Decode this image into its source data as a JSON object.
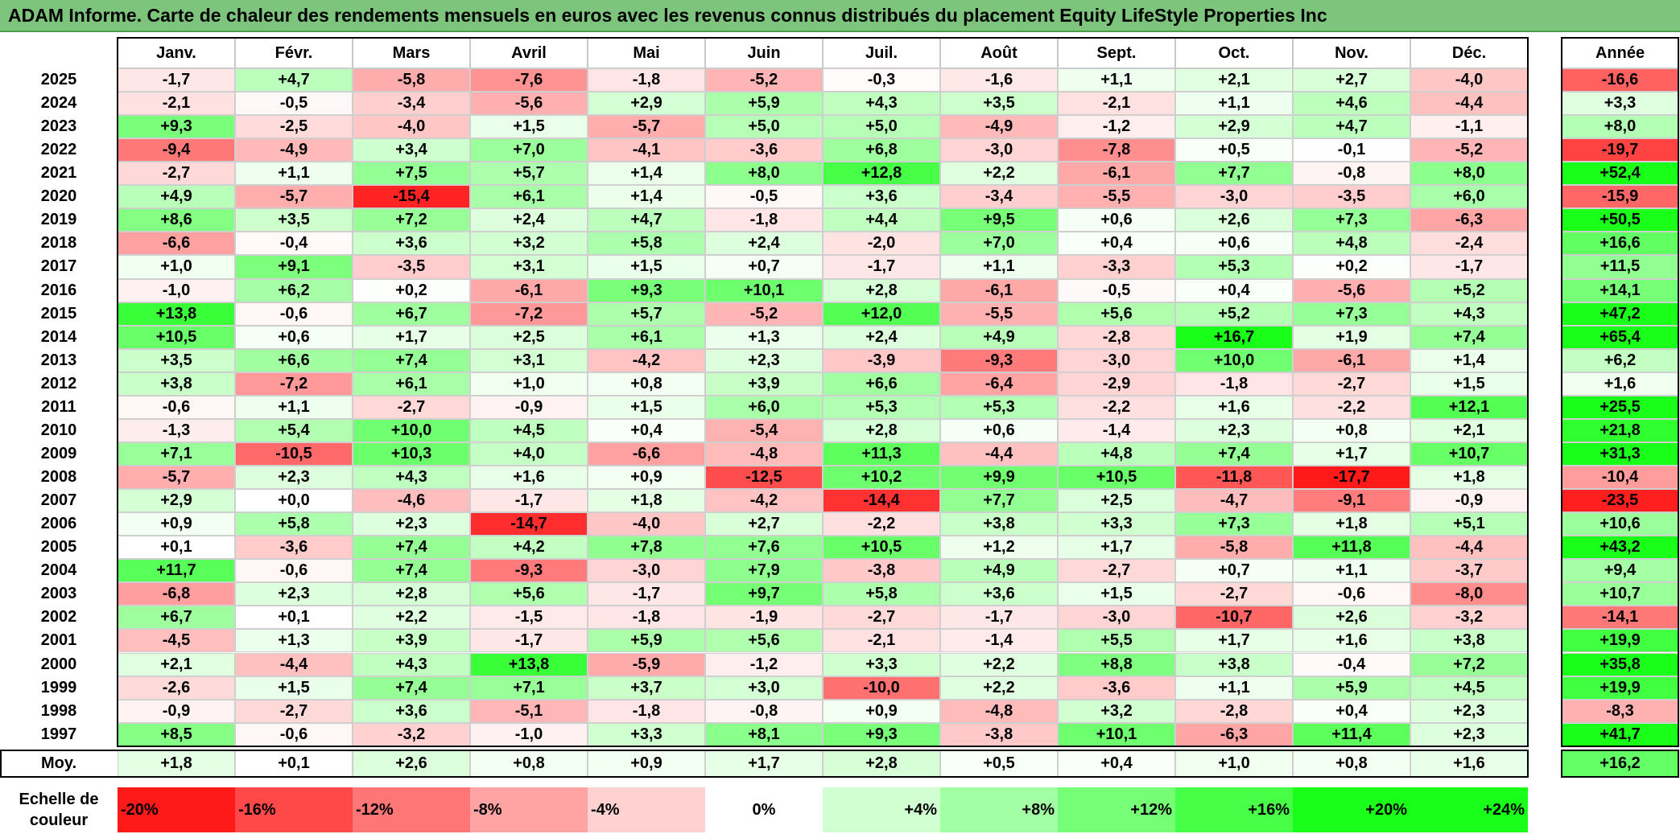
{
  "title": "ADAM Informe. Carte de chaleur des rendements mensuels en euros avec les revenus connus distribués du placement Equity LifeStyle Properties Inc",
  "colors": {
    "title_bg": "#7dc57d",
    "negative_max": "#ff1a1a",
    "neutral": "#ffffff",
    "positive_max": "#1aff1a"
  },
  "chart_data": {
    "type": "heatmap",
    "title": "ADAM Informe. Carte de chaleur des rendements mensuels en euros avec les revenus connus distribués du placement Equity LifeStyle Properties Inc",
    "columns": [
      "Janv.",
      "Févr.",
      "Mars",
      "Avril",
      "Mai",
      "Juin",
      "Juil.",
      "Août",
      "Sept.",
      "Oct.",
      "Nov.",
      "Déc."
    ],
    "year_column_label": "Année",
    "rows": [
      {
        "year": "2025",
        "months": [
          "-1,7",
          "+4,7",
          "-5,8",
          "-7,6",
          "-1,8",
          "-5,2",
          "-0,3",
          "-1,6",
          "+1,1",
          "+2,1",
          "+2,7",
          "-4,0"
        ],
        "annual": "-16,6"
      },
      {
        "year": "2024",
        "months": [
          "-2,1",
          "-0,5",
          "-3,4",
          "-5,6",
          "+2,9",
          "+5,9",
          "+4,3",
          "+3,5",
          "-2,1",
          "+1,1",
          "+4,6",
          "-4,4"
        ],
        "annual": "+3,3"
      },
      {
        "year": "2023",
        "months": [
          "+9,3",
          "-2,5",
          "-4,0",
          "+1,5",
          "-5,7",
          "+5,0",
          "+5,0",
          "-4,9",
          "-1,2",
          "+2,9",
          "+4,7",
          "-1,1"
        ],
        "annual": "+8,0"
      },
      {
        "year": "2022",
        "months": [
          "-9,4",
          "-4,9",
          "+3,4",
          "+7,0",
          "-4,1",
          "-3,6",
          "+6,8",
          "-3,0",
          "-7,8",
          "+0,5",
          "-0,1",
          "-5,2"
        ],
        "annual": "-19,7"
      },
      {
        "year": "2021",
        "months": [
          "-2,7",
          "+1,1",
          "+7,5",
          "+5,7",
          "+1,4",
          "+8,0",
          "+12,8",
          "+2,2",
          "-6,1",
          "+7,7",
          "-0,8",
          "+8,0"
        ],
        "annual": "+52,4"
      },
      {
        "year": "2020",
        "months": [
          "+4,9",
          "-5,7",
          "-15,4",
          "+6,1",
          "+1,4",
          "-0,5",
          "+3,6",
          "-3,4",
          "-5,5",
          "-3,0",
          "-3,5",
          "+6,0"
        ],
        "annual": "-15,9"
      },
      {
        "year": "2019",
        "months": [
          "+8,6",
          "+3,5",
          "+7,2",
          "+2,4",
          "+4,7",
          "-1,8",
          "+4,4",
          "+9,5",
          "+0,6",
          "+2,6",
          "+7,3",
          "-6,3"
        ],
        "annual": "+50,5"
      },
      {
        "year": "2018",
        "months": [
          "-6,6",
          "-0,4",
          "+3,6",
          "+3,2",
          "+5,8",
          "+2,4",
          "-2,0",
          "+7,0",
          "+0,4",
          "+0,6",
          "+4,8",
          "-2,4"
        ],
        "annual": "+16,6"
      },
      {
        "year": "2017",
        "months": [
          "+1,0",
          "+9,1",
          "-3,5",
          "+3,1",
          "+1,5",
          "+0,7",
          "-1,7",
          "+1,1",
          "-3,3",
          "+5,3",
          "+0,2",
          "-1,7"
        ],
        "annual": "+11,5"
      },
      {
        "year": "2016",
        "months": [
          "-1,0",
          "+6,2",
          "+0,2",
          "-6,1",
          "+9,3",
          "+10,1",
          "+2,8",
          "-6,1",
          "-0,5",
          "+0,4",
          "-5,6",
          "+5,2"
        ],
        "annual": "+14,1"
      },
      {
        "year": "2015",
        "months": [
          "+13,8",
          "-0,6",
          "+6,7",
          "-7,2",
          "+5,7",
          "-5,2",
          "+12,0",
          "-5,5",
          "+5,6",
          "+5,2",
          "+7,3",
          "+4,3"
        ],
        "annual": "+47,2"
      },
      {
        "year": "2014",
        "months": [
          "+10,5",
          "+0,6",
          "+1,7",
          "+2,5",
          "+6,1",
          "+1,3",
          "+2,4",
          "+4,9",
          "-2,8",
          "+16,7",
          "+1,9",
          "+7,4"
        ],
        "annual": "+65,4"
      },
      {
        "year": "2013",
        "months": [
          "+3,5",
          "+6,6",
          "+7,4",
          "+3,1",
          "-4,2",
          "+2,3",
          "-3,9",
          "-9,3",
          "-3,0",
          "+10,0",
          "-6,1",
          "+1,4"
        ],
        "annual": "+6,2"
      },
      {
        "year": "2012",
        "months": [
          "+3,8",
          "-7,2",
          "+6,1",
          "+1,0",
          "+0,8",
          "+3,9",
          "+6,6",
          "-6,4",
          "-2,9",
          "-1,8",
          "-2,7",
          "+1,5"
        ],
        "annual": "+1,6"
      },
      {
        "year": "2011",
        "months": [
          "-0,6",
          "+1,1",
          "-2,7",
          "-0,9",
          "+1,5",
          "+6,0",
          "+5,3",
          "+5,3",
          "-2,2",
          "+1,6",
          "-2,2",
          "+12,1"
        ],
        "annual": "+25,5"
      },
      {
        "year": "2010",
        "months": [
          "-1,3",
          "+5,4",
          "+10,0",
          "+4,5",
          "+0,4",
          "-5,4",
          "+2,8",
          "+0,6",
          "-1,4",
          "+2,3",
          "+0,8",
          "+2,1"
        ],
        "annual": "+21,8"
      },
      {
        "year": "2009",
        "months": [
          "+7,1",
          "-10,5",
          "+10,3",
          "+4,0",
          "-6,6",
          "-4,8",
          "+11,3",
          "-4,4",
          "+4,8",
          "+7,4",
          "+1,7",
          "+10,7"
        ],
        "annual": "+31,3"
      },
      {
        "year": "2008",
        "months": [
          "-5,7",
          "+2,3",
          "+4,3",
          "+1,6",
          "+0,9",
          "-12,5",
          "+10,2",
          "+9,9",
          "+10,5",
          "-11,8",
          "-17,7",
          "+1,8"
        ],
        "annual": "-10,4"
      },
      {
        "year": "2007",
        "months": [
          "+2,9",
          "+0,0",
          "-4,6",
          "-1,7",
          "+1,8",
          "-4,2",
          "-14,4",
          "+7,7",
          "+2,5",
          "-4,7",
          "-9,1",
          "-0,9"
        ],
        "annual": "-23,5"
      },
      {
        "year": "2006",
        "months": [
          "+0,9",
          "+5,8",
          "+2,3",
          "-14,7",
          "-4,0",
          "+2,7",
          "-2,2",
          "+3,8",
          "+3,3",
          "+7,3",
          "+1,8",
          "+5,1"
        ],
        "annual": "+10,6"
      },
      {
        "year": "2005",
        "months": [
          "+0,1",
          "-3,6",
          "+7,4",
          "+4,2",
          "+7,8",
          "+7,6",
          "+10,5",
          "+1,2",
          "+1,7",
          "-5,8",
          "+11,8",
          "-4,4"
        ],
        "annual": "+43,2"
      },
      {
        "year": "2004",
        "months": [
          "+11,7",
          "-0,6",
          "+7,4",
          "-9,3",
          "-3,0",
          "+7,9",
          "-3,8",
          "+4,9",
          "-2,7",
          "+0,7",
          "+1,1",
          "-3,7"
        ],
        "annual": "+9,4"
      },
      {
        "year": "2003",
        "months": [
          "-6,8",
          "+2,3",
          "+2,8",
          "+5,6",
          "-1,7",
          "+9,7",
          "+5,8",
          "+3,6",
          "+1,5",
          "-2,7",
          "-0,6",
          "-8,0"
        ],
        "annual": "+10,7"
      },
      {
        "year": "2002",
        "months": [
          "+6,7",
          "+0,1",
          "+2,2",
          "-1,5",
          "-1,8",
          "-1,9",
          "-2,7",
          "-1,7",
          "-3,0",
          "-10,7",
          "+2,6",
          "-3,2"
        ],
        "annual": "-14,1"
      },
      {
        "year": "2001",
        "months": [
          "-4,5",
          "+1,3",
          "+3,9",
          "-1,7",
          "+5,9",
          "+5,6",
          "-2,1",
          "-1,4",
          "+5,5",
          "+1,7",
          "+1,6",
          "+3,8"
        ],
        "annual": "+19,9"
      },
      {
        "year": "2000",
        "months": [
          "+2,1",
          "-4,4",
          "+4,3",
          "+13,8",
          "-5,9",
          "-1,2",
          "+3,3",
          "+2,2",
          "+8,8",
          "+3,8",
          "-0,4",
          "+7,2"
        ],
        "annual": "+35,8"
      },
      {
        "year": "1999",
        "months": [
          "-2,6",
          "+1,5",
          "+7,4",
          "+7,1",
          "+3,7",
          "+3,0",
          "-10,0",
          "+2,2",
          "-3,6",
          "+1,1",
          "+5,9",
          "+4,5"
        ],
        "annual": "+19,9"
      },
      {
        "year": "1998",
        "months": [
          "-0,9",
          "-2,7",
          "+3,6",
          "-5,1",
          "-1,8",
          "-0,8",
          "+0,9",
          "-4,8",
          "+3,2",
          "-2,8",
          "+0,4",
          "+2,3"
        ],
        "annual": "-8,3"
      },
      {
        "year": "1997",
        "months": [
          "+8,5",
          "-0,6",
          "-3,2",
          "-1,0",
          "+3,3",
          "+8,1",
          "+9,3",
          "-3,8",
          "+10,1",
          "-6,3",
          "+11,4",
          "+2,3"
        ],
        "annual": "+41,7"
      }
    ],
    "average": {
      "label": "Moy.",
      "months": [
        "+1,8",
        "+0,1",
        "+2,6",
        "+0,8",
        "+0,9",
        "+1,7",
        "+2,8",
        "+0,5",
        "+0,4",
        "+1,0",
        "+0,8",
        "+1,6"
      ],
      "annual": "+16,2"
    },
    "scale": {
      "label": "Echelle de couleur",
      "stops": [
        {
          "text": "-20%",
          "value": -20
        },
        {
          "text": "-16%",
          "value": -16
        },
        {
          "text": "-12%",
          "value": -12
        },
        {
          "text": "-8%",
          "value": -8
        },
        {
          "text": "-4%",
          "value": -4
        },
        {
          "text": "0%",
          "value": 0
        },
        {
          "text": "+4%",
          "value": 4
        },
        {
          "text": "+8%",
          "value": 8
        },
        {
          "text": "+12%",
          "value": 12
        },
        {
          "text": "+16%",
          "value": 16
        },
        {
          "text": "+20%",
          "value": 20
        },
        {
          "text": "+24%",
          "value": 24
        }
      ]
    }
  }
}
